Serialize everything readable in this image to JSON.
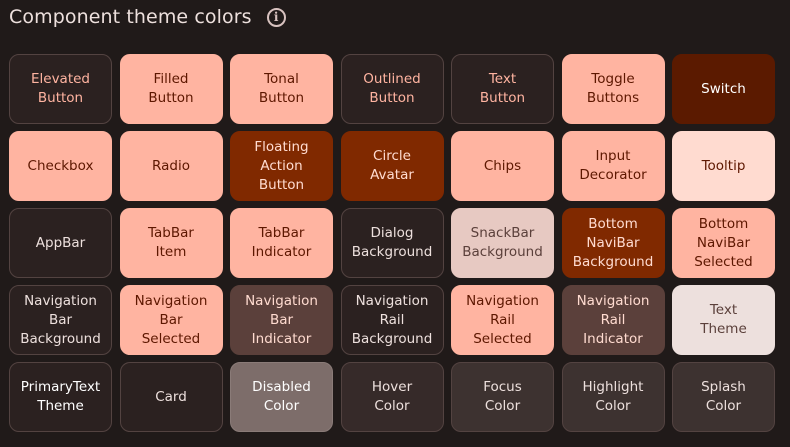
{
  "header": {
    "title": "Component theme colors",
    "info_icon": "info-icon"
  },
  "colors": {
    "background": "#201a19",
    "surface_dark": "#2b2120",
    "outline": "#534341",
    "primary_light": "#ffb4a1",
    "primary_dark": "#802900",
    "primary_darkest": "#5b1a00",
    "container_light": "#ffdbd0",
    "container_mid": "#e7c9c2",
    "neutral_dark": "#5b403b",
    "disabled": "#7d6d6a",
    "action_dark": "#3d3230",
    "text_light": "#ede0dd",
    "text_dark_on_light": "#5d1700",
    "text_primary": "#ffb4a1"
  },
  "tiles": [
    {
      "label": "Elevated\nButton",
      "bg": "#2b2120",
      "fg": "#ffb4a1",
      "border": "#534341"
    },
    {
      "label": "Filled\nButton",
      "bg": "#ffb4a1",
      "fg": "#5d1700",
      "border": "#ffb4a1"
    },
    {
      "label": "Tonal\nButton",
      "bg": "#ffb4a1",
      "fg": "#5d1700",
      "border": "#ffb4a1"
    },
    {
      "label": "Outlined\nButton",
      "bg": "#2b2120",
      "fg": "#ffb4a1",
      "border": "#534341"
    },
    {
      "label": "Text\nButton",
      "bg": "#2b2120",
      "fg": "#ffb4a1",
      "border": "#534341"
    },
    {
      "label": "Toggle\nButtons",
      "bg": "#ffb4a1",
      "fg": "#5d1700",
      "border": "#ffb4a1"
    },
    {
      "label": "Switch",
      "bg": "#5b1a00",
      "fg": "#ffffff",
      "border": "#5b1a00"
    },
    {
      "label": "Checkbox",
      "bg": "#ffb4a1",
      "fg": "#5d1700",
      "border": "#ffb4a1"
    },
    {
      "label": "Radio",
      "bg": "#ffb4a1",
      "fg": "#5d1700",
      "border": "#ffb4a1"
    },
    {
      "label": "Floating\nAction\nButton",
      "bg": "#802900",
      "fg": "#ffdbd0",
      "border": "#802900"
    },
    {
      "label": "Circle\nAvatar",
      "bg": "#802900",
      "fg": "#ffdbd0",
      "border": "#802900"
    },
    {
      "label": "Chips",
      "bg": "#ffb4a1",
      "fg": "#5d1700",
      "border": "#ffb4a1"
    },
    {
      "label": "Input\nDecorator",
      "bg": "#ffb4a1",
      "fg": "#5d1700",
      "border": "#ffb4a1"
    },
    {
      "label": "Tooltip",
      "bg": "#ffdbd0",
      "fg": "#5d1700",
      "border": "#ffdbd0"
    },
    {
      "label": "AppBar",
      "bg": "#2b2120",
      "fg": "#ede0dd",
      "border": "#534341"
    },
    {
      "label": "TabBar\nItem",
      "bg": "#ffb4a1",
      "fg": "#5d1700",
      "border": "#ffb4a1"
    },
    {
      "label": "TabBar\nIndicator",
      "bg": "#ffb4a1",
      "fg": "#5d1700",
      "border": "#ffb4a1"
    },
    {
      "label": "Dialog\nBackground",
      "bg": "#2b2120",
      "fg": "#ede0dd",
      "border": "#534341"
    },
    {
      "label": "SnackBar\nBackground",
      "bg": "#e7c9c2",
      "fg": "#5b403b",
      "border": "#e7c9c2"
    },
    {
      "label": "Bottom\nNaviBar\nBackground",
      "bg": "#802900",
      "fg": "#ffdbd0",
      "border": "#802900"
    },
    {
      "label": "Bottom\nNaviBar\nSelected",
      "bg": "#ffb4a1",
      "fg": "#5d1700",
      "border": "#ffb4a1"
    },
    {
      "label": "Navigation\nBar\nBackground",
      "bg": "#2b2120",
      "fg": "#ede0dd",
      "border": "#534341"
    },
    {
      "label": "Navigation\nBar\nSelected",
      "bg": "#ffb4a1",
      "fg": "#5d1700",
      "border": "#ffb4a1"
    },
    {
      "label": "Navigation\nBar\nIndicator",
      "bg": "#5b403b",
      "fg": "#ffdbd0",
      "border": "#5b403b"
    },
    {
      "label": "Navigation\nRail\nBackground",
      "bg": "#2b2120",
      "fg": "#ede0dd",
      "border": "#534341"
    },
    {
      "label": "Navigation\nRail\nSelected",
      "bg": "#ffb4a1",
      "fg": "#5d1700",
      "border": "#ffb4a1"
    },
    {
      "label": "Navigation\nRail\nIndicator",
      "bg": "#5b403b",
      "fg": "#ffdbd0",
      "border": "#5b403b"
    },
    {
      "label": "Text\nTheme",
      "bg": "#ede0dd",
      "fg": "#5b403b",
      "border": "#ede0dd"
    },
    {
      "label": "PrimaryText\nTheme",
      "bg": "#2b2120",
      "fg": "#ffffff",
      "border": "#534341"
    },
    {
      "label": "Card",
      "bg": "#2b2120",
      "fg": "#ede0dd",
      "border": "#534341"
    },
    {
      "label": "Disabled\nColor",
      "bg": "#7d6d6a",
      "fg": "#ffffff",
      "border": "#8a7b78"
    },
    {
      "label": "Hover\nColor",
      "bg": "#362a29",
      "fg": "#ede0dd",
      "border": "#534341"
    },
    {
      "label": "Focus\nColor",
      "bg": "#3d3230",
      "fg": "#ede0dd",
      "border": "#534341"
    },
    {
      "label": "Highlight\nColor",
      "bg": "#3d3230",
      "fg": "#ede0dd",
      "border": "#534341"
    },
    {
      "label": "Splash\nColor",
      "bg": "#3d3230",
      "fg": "#ede0dd",
      "border": "#534341"
    }
  ]
}
